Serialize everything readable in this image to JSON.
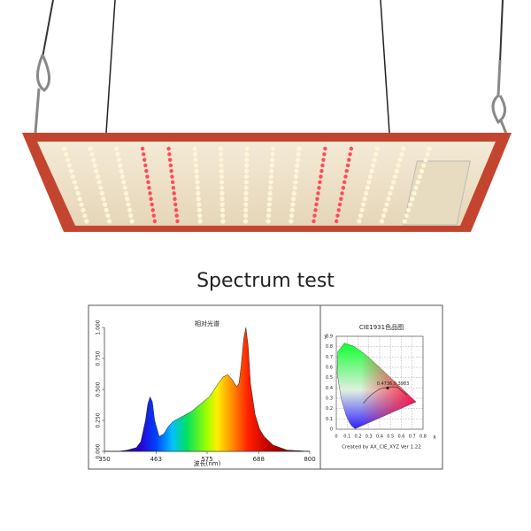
{
  "title": "Spectrum test",
  "spectrum": {
    "type": "area",
    "title": "相对光谱",
    "x_label": "波长(nm)",
    "x": [
      350,
      380,
      400,
      420,
      430,
      440,
      445,
      450,
      455,
      460,
      470,
      480,
      490,
      500,
      520,
      540,
      560,
      580,
      600,
      610,
      620,
      630,
      640,
      645,
      650,
      655,
      660,
      665,
      670,
      680,
      690,
      700,
      720,
      750,
      800
    ],
    "values": [
      0,
      0,
      0.01,
      0.03,
      0.08,
      0.25,
      0.38,
      0.44,
      0.4,
      0.25,
      0.12,
      0.14,
      0.2,
      0.24,
      0.28,
      0.32,
      0.38,
      0.44,
      0.55,
      0.6,
      0.62,
      0.58,
      0.52,
      0.55,
      0.7,
      0.9,
      1.0,
      0.85,
      0.55,
      0.3,
      0.18,
      0.12,
      0.05,
      0.01,
      0
    ],
    "xlim": [
      350,
      800
    ],
    "xticks": [
      350,
      463,
      575,
      688,
      800
    ],
    "ylim": [
      0,
      1
    ],
    "yticks": [
      {
        "value": 0,
        "label": "0.000"
      },
      {
        "value": 0.25,
        "label": "0.250"
      },
      {
        "value": 0.5,
        "label": "0.500"
      },
      {
        "value": 0.75,
        "label": "0.750"
      },
      {
        "value": 1,
        "label": "1.000"
      }
    ]
  },
  "cie": {
    "type": "scatter",
    "title": "CIE1931色品图",
    "x_label": "x",
    "y_label": "y",
    "xlim": [
      0,
      0.8
    ],
    "ylim": [
      0,
      0.9
    ],
    "xticks": [
      0,
      0.1,
      0.2,
      0.3,
      0.4,
      0.5,
      0.6,
      0.7,
      0.8
    ],
    "yticks": [
      0,
      0.1,
      0.2,
      0.3,
      0.4,
      0.5,
      0.6,
      0.7,
      0.8,
      0.9
    ],
    "point": {
      "x": 0.4736,
      "y": 0.3983
    },
    "point_label": "0.4736,0.3983",
    "footer": "Created by AX_CIE_XYZ Ver 1.22"
  }
}
